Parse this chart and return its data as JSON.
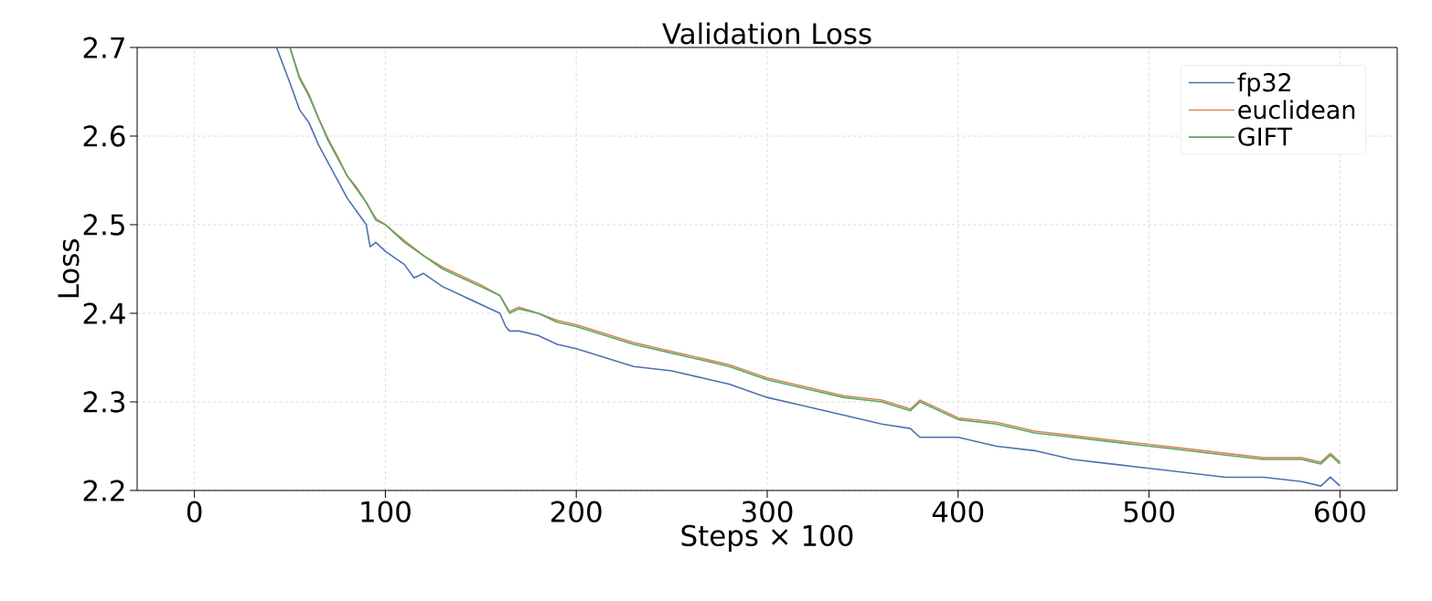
{
  "chart_data": {
    "type": "line",
    "title": "Validation Loss",
    "xlabel": "Steps × 100",
    "ylabel": "Loss",
    "xlim": [
      -30,
      630
    ],
    "ylim": [
      2.2,
      2.7
    ],
    "xticks": [
      0,
      100,
      200,
      300,
      400,
      500,
      600
    ],
    "yticks": [
      2.2,
      2.3,
      2.4,
      2.5,
      2.6,
      2.7
    ],
    "grid": true,
    "legend": "top right",
    "series": [
      {
        "name": "fp32",
        "color": "#4c72b0",
        "x": [
          43,
          50,
          55,
          60,
          65,
          70,
          75,
          80,
          85,
          90,
          92,
          95,
          100,
          110,
          115,
          120,
          130,
          140,
          150,
          160,
          163,
          165,
          170,
          180,
          190,
          200,
          215,
          230,
          250,
          270,
          280,
          300,
          320,
          340,
          360,
          375,
          380,
          400,
          420,
          440,
          460,
          480,
          500,
          520,
          540,
          560,
          580,
          590,
          595,
          600
        ],
        "values": [
          2.7,
          2.66,
          2.63,
          2.615,
          2.59,
          2.57,
          2.55,
          2.53,
          2.515,
          2.5,
          2.475,
          2.48,
          2.47,
          2.455,
          2.44,
          2.445,
          2.43,
          2.42,
          2.41,
          2.4,
          2.385,
          2.38,
          2.38,
          2.375,
          2.365,
          2.36,
          2.35,
          2.34,
          2.335,
          2.325,
          2.32,
          2.305,
          2.295,
          2.285,
          2.275,
          2.27,
          2.26,
          2.26,
          2.25,
          2.245,
          2.235,
          2.23,
          2.225,
          2.22,
          2.215,
          2.215,
          2.21,
          2.205,
          2.215,
          2.205
        ]
      },
      {
        "name": "euclidean",
        "color": "#dd8452",
        "x": [
          50,
          55,
          60,
          65,
          70,
          75,
          80,
          85,
          90,
          95,
          100,
          110,
          120,
          130,
          140,
          150,
          160,
          165,
          170,
          180,
          190,
          200,
          215,
          230,
          250,
          270,
          280,
          300,
          320,
          340,
          360,
          375,
          380,
          400,
          420,
          440,
          460,
          480,
          500,
          520,
          540,
          560,
          580,
          590,
          595,
          600
        ],
        "values": [
          2.7,
          2.667,
          2.647,
          2.62,
          2.597,
          2.577,
          2.555,
          2.542,
          2.525,
          2.507,
          2.5,
          2.482,
          2.465,
          2.452,
          2.442,
          2.432,
          2.42,
          2.402,
          2.407,
          2.4,
          2.392,
          2.387,
          2.377,
          2.367,
          2.357,
          2.347,
          2.342,
          2.327,
          2.317,
          2.307,
          2.302,
          2.292,
          2.302,
          2.282,
          2.277,
          2.267,
          2.262,
          2.257,
          2.252,
          2.247,
          2.242,
          2.237,
          2.237,
          2.232,
          2.242,
          2.232
        ]
      },
      {
        "name": "GIFT",
        "color": "#55a868",
        "x": [
          50,
          55,
          60,
          65,
          70,
          75,
          80,
          85,
          90,
          95,
          100,
          110,
          120,
          130,
          140,
          150,
          160,
          165,
          170,
          180,
          190,
          200,
          215,
          230,
          250,
          270,
          280,
          300,
          320,
          340,
          360,
          375,
          380,
          400,
          420,
          440,
          460,
          480,
          500,
          520,
          540,
          560,
          580,
          590,
          595,
          600
        ],
        "values": [
          2.7,
          2.665,
          2.645,
          2.62,
          2.595,
          2.575,
          2.555,
          2.54,
          2.525,
          2.505,
          2.5,
          2.48,
          2.465,
          2.45,
          2.44,
          2.43,
          2.42,
          2.4,
          2.405,
          2.4,
          2.39,
          2.385,
          2.375,
          2.365,
          2.355,
          2.345,
          2.34,
          2.325,
          2.315,
          2.305,
          2.3,
          2.29,
          2.3,
          2.28,
          2.275,
          2.265,
          2.26,
          2.255,
          2.25,
          2.245,
          2.24,
          2.235,
          2.235,
          2.23,
          2.24,
          2.23
        ]
      }
    ]
  }
}
